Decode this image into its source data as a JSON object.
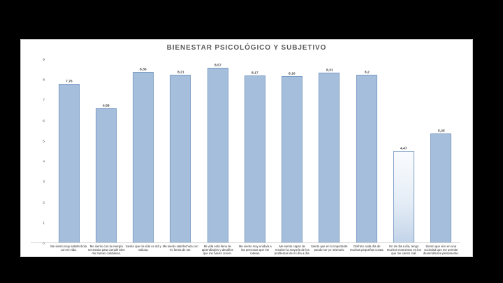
{
  "window": {
    "background_color": "#000000",
    "panel_background_color": "#ffffff"
  },
  "chart_data": {
    "type": "bar",
    "title": "BIENESTAR PSICOLÓGICO Y SUBJETIVO",
    "categories": [
      "Me siento muy satisfecho/a con mi vida.",
      "Me siento con la energía necesaria para cumplir bien mis tareas cotidianas.",
      "Siento que mi vida es útil y valiosa.",
      "Me siento satisfecho/a con mi forma de ser.",
      "Mi vida está llena de aprendizajes y desafíos que me hacen crecer.",
      "Me siento muy unido/a a las personas que me rodean.",
      "Me siento capaz de resolver la mayoría de los problemas de mi día a día.",
      "Siento que en lo importante puedo ser yo mismo/a.",
      "Disfruto cada día de muchas pequeñas cosas.",
      "En mi día a día, tengo muchos momentos en los que me siento mal.",
      "Siento que vivo en una sociedad que me permite desarrollarme plenamente."
    ],
    "values": [
      7.76,
      6.58,
      8.36,
      8.21,
      8.57,
      8.17,
      8.16,
      8.31,
      8.2,
      4.47,
      5.35
    ],
    "value_labels": [
      "7,76",
      "6,58",
      "8,36",
      "8,21",
      "8,57",
      "8,17",
      "8,16",
      "8,31",
      "8,2",
      "4,47",
      "5,35"
    ],
    "xlabel": "",
    "ylabel": "",
    "ylim": [
      0,
      9
    ],
    "yticks": [
      0,
      1,
      2,
      3,
      4,
      5,
      6,
      7,
      8,
      9
    ],
    "grid": false,
    "legend": null,
    "light_bar_index": 9,
    "colors": {
      "bar_fill": "#a5bedb",
      "bar_border": "#7a9cc4",
      "title_text": "#595959",
      "axis_line": "#cfcfcf",
      "tick_text": "#404040",
      "category_text": "#262626"
    }
  }
}
